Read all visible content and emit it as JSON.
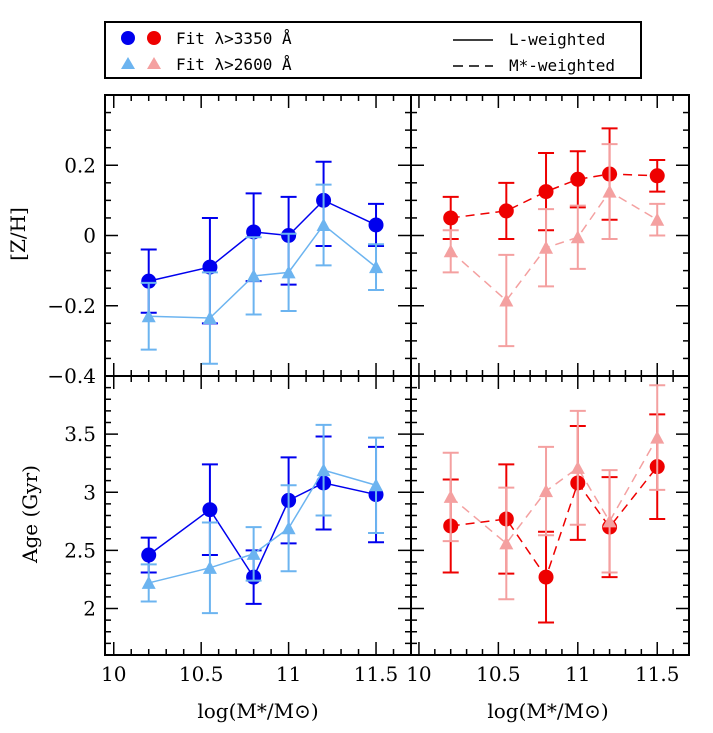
{
  "legend": {
    "fit1": "Fit λ>3350 Å",
    "fit2": "Fit λ>2600 Å",
    "solid": "L-weighted",
    "dashed": "M*-weighted"
  },
  "axis_titles": {
    "x_left": "log(M*/M⊙)",
    "x_right": "log(M*/M⊙)",
    "y_top": "[Z/H]",
    "y_bottom": "Age (Gyr)"
  },
  "colors": {
    "dark_blue": "#0000ee",
    "light_blue": "#6cb4f0",
    "dark_red": "#ee0000",
    "light_red": "#f4a0a0"
  },
  "chart_data": [
    {
      "id": "zh-lweighted",
      "type": "line",
      "ylabel": "[Z/H]",
      "xlim": [
        9.95,
        11.7
      ],
      "ylim": [
        -0.4,
        0.4
      ],
      "xticks": [
        10,
        10.5,
        11,
        11.5
      ],
      "yticks": [
        -0.4,
        -0.2,
        0,
        0.2
      ],
      "ytick_labels": [
        "−0.4",
        "−0.2",
        "0",
        "0.2"
      ],
      "series": [
        {
          "name": "Fit λ>3350 Å",
          "color": "#0000ee",
          "marker": "circle",
          "dashed": false,
          "x": [
            10.2,
            10.55,
            10.8,
            11.0,
            11.2,
            11.5
          ],
          "y": [
            -0.13,
            -0.09,
            0.01,
            0.0,
            0.1,
            0.03
          ],
          "err_lo": [
            0.09,
            0.16,
            0.14,
            0.14,
            0.13,
            0.06
          ],
          "err_hi": [
            0.09,
            0.14,
            0.11,
            0.11,
            0.11,
            0.06
          ]
        },
        {
          "name": "Fit λ>2600 Å",
          "color": "#6cb4f0",
          "marker": "triangle",
          "dashed": false,
          "x": [
            10.2,
            10.55,
            10.8,
            11.0,
            11.2,
            11.5
          ],
          "y": [
            -0.23,
            -0.235,
            -0.115,
            -0.105,
            0.03,
            -0.09
          ],
          "err_lo": [
            0.095,
            0.13,
            0.11,
            0.11,
            0.115,
            0.065
          ],
          "err_hi": [
            0.095,
            0.13,
            0.11,
            0.11,
            0.115,
            0.065
          ]
        }
      ]
    },
    {
      "id": "zh-mweighted",
      "type": "line",
      "ylabel": "",
      "xlim": [
        9.95,
        11.7
      ],
      "ylim": [
        -0.4,
        0.4
      ],
      "xticks": [
        10,
        10.5,
        11,
        11.5
      ],
      "yticks": [
        -0.4,
        -0.2,
        0,
        0.2
      ],
      "series": [
        {
          "name": "Fit λ>3350 Å",
          "color": "#ee0000",
          "marker": "circle",
          "dashed": true,
          "x": [
            10.2,
            10.55,
            10.8,
            11.0,
            11.2,
            11.5
          ],
          "y": [
            0.05,
            0.07,
            0.125,
            0.16,
            0.175,
            0.17
          ],
          "err_lo": [
            0.06,
            0.08,
            0.11,
            0.08,
            0.13,
            0.045
          ],
          "err_hi": [
            0.06,
            0.08,
            0.11,
            0.08,
            0.13,
            0.045
          ]
        },
        {
          "name": "Fit λ>2600 Å",
          "color": "#f4a0a0",
          "marker": "triangle",
          "dashed": true,
          "x": [
            10.2,
            10.55,
            10.8,
            11.0,
            11.2,
            11.5
          ],
          "y": [
            -0.045,
            -0.185,
            -0.035,
            -0.005,
            0.125,
            0.045
          ],
          "err_lo": [
            0.06,
            0.13,
            0.11,
            0.09,
            0.135,
            0.045
          ],
          "err_hi": [
            0.06,
            0.13,
            0.11,
            0.09,
            0.135,
            0.045
          ]
        }
      ]
    },
    {
      "id": "age-lweighted",
      "type": "line",
      "ylabel": "Age (Gyr)",
      "xlim": [
        9.95,
        11.7
      ],
      "ylim": [
        1.6,
        4.0
      ],
      "xticks": [
        10,
        10.5,
        11,
        11.5
      ],
      "xtick_labels": [
        "10",
        "10.5",
        "11",
        "11.5"
      ],
      "yticks": [
        2,
        2.5,
        3,
        3.5
      ],
      "ytick_labels": [
        "2",
        "2.5",
        "3",
        "3.5"
      ],
      "series": [
        {
          "name": "Fit λ>3350 Å",
          "color": "#0000ee",
          "marker": "circle",
          "dashed": false,
          "x": [
            10.2,
            10.55,
            10.8,
            11.0,
            11.2,
            11.5
          ],
          "y": [
            2.46,
            2.85,
            2.27,
            2.93,
            3.08,
            2.98
          ],
          "err_lo": [
            0.15,
            0.39,
            0.23,
            0.37,
            0.4,
            0.41
          ],
          "err_hi": [
            0.15,
            0.39,
            0.23,
            0.37,
            0.4,
            0.41
          ]
        },
        {
          "name": "Fit λ>2600 Å",
          "color": "#6cb4f0",
          "marker": "triangle",
          "dashed": false,
          "x": [
            10.2,
            10.55,
            10.8,
            11.0,
            11.2,
            11.5
          ],
          "y": [
            2.22,
            2.35,
            2.47,
            2.69,
            3.19,
            3.06
          ],
          "err_lo": [
            0.16,
            0.39,
            0.23,
            0.37,
            0.39,
            0.41
          ],
          "err_hi": [
            0.16,
            0.39,
            0.23,
            0.37,
            0.39,
            0.41
          ]
        }
      ]
    },
    {
      "id": "age-mweighted",
      "type": "line",
      "ylabel": "",
      "xlim": [
        9.95,
        11.7
      ],
      "ylim": [
        1.6,
        4.0
      ],
      "xticks": [
        10,
        10.5,
        11,
        11.5
      ],
      "xtick_labels": [
        "10",
        "10.5",
        "11",
        "11.5"
      ],
      "yticks": [
        2,
        2.5,
        3,
        3.5
      ],
      "series": [
        {
          "name": "Fit λ>3350 Å",
          "color": "#ee0000",
          "marker": "circle",
          "dashed": true,
          "x": [
            10.2,
            10.55,
            10.8,
            11.0,
            11.2,
            11.5
          ],
          "y": [
            2.71,
            2.77,
            2.27,
            3.08,
            2.7,
            3.22
          ],
          "err_lo": [
            0.4,
            0.47,
            0.39,
            0.49,
            0.43,
            0.45
          ],
          "err_hi": [
            0.4,
            0.47,
            0.39,
            0.49,
            0.43,
            0.45
          ]
        },
        {
          "name": "Fit λ>2600 Å",
          "color": "#f4a0a0",
          "marker": "triangle",
          "dashed": true,
          "x": [
            10.2,
            10.55,
            10.8,
            11.0,
            11.2,
            11.5
          ],
          "y": [
            2.96,
            2.56,
            3.01,
            3.21,
            2.75,
            3.47
          ],
          "err_lo": [
            0.38,
            0.48,
            0.38,
            0.49,
            0.44,
            0.45
          ],
          "err_hi": [
            0.38,
            0.48,
            0.38,
            0.49,
            0.44,
            0.45
          ]
        }
      ]
    }
  ]
}
